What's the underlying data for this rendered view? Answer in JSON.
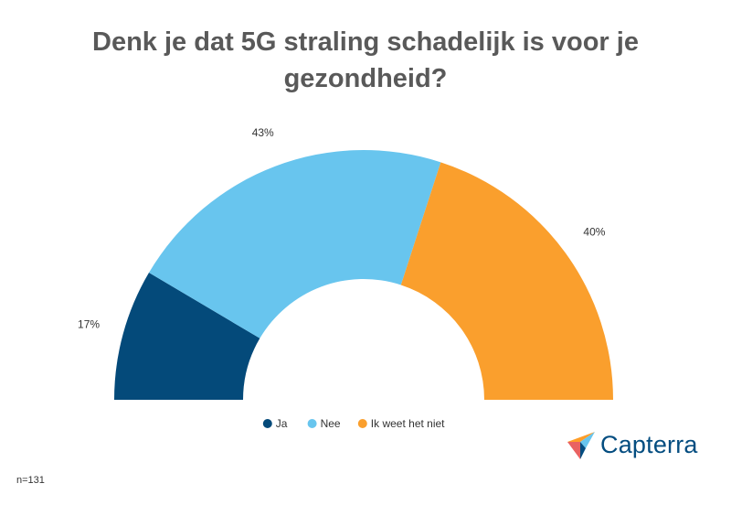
{
  "chart_data": {
    "type": "pie",
    "subtype": "semi-donut",
    "title": "Denk je dat 5G straling schadelijk is voor je gezondheid?",
    "categories": [
      "Ja",
      "Nee",
      "Ik weet het niet"
    ],
    "values": [
      17,
      43,
      40
    ],
    "labels": [
      "17%",
      "43%",
      "40%"
    ],
    "colors": [
      "#044a7a",
      "#68c5ee",
      "#fa9f2d"
    ],
    "legend_position": "bottom"
  },
  "footnote": "n=131",
  "logo": {
    "text": "Capterra",
    "icon": "capterra-arrow-icon"
  }
}
